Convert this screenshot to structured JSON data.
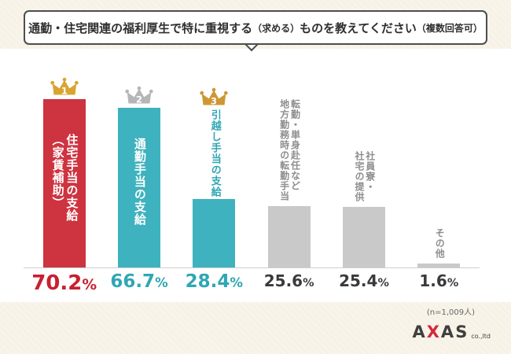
{
  "title": {
    "seg_main1": "通勤・住宅関連の福利厚生で特に重視する",
    "seg_small1": "（求める）",
    "seg_main2": "ものを教えてください",
    "seg_small2": "（複数回答可）"
  },
  "chart_data": {
    "type": "bar",
    "title": "通勤・住宅関連の福利厚生で特に重視する（求める）ものを教えてください（複数回答可）",
    "categories": [
      "住宅手当の支給（家賃補助）",
      "通勤手当の支給",
      "引越し手当の支給",
      "転勤・単身赴任など地方勤務時の転勤手当",
      "社員寮・社宅の提供",
      "その他"
    ],
    "values": [
      70.2,
      66.7,
      28.4,
      25.6,
      25.4,
      1.6
    ],
    "unit": "%",
    "ylim": [
      0,
      100
    ],
    "grid": false,
    "legend": "none",
    "sample_note": "(n=1,009人)",
    "ranks": [
      1,
      2,
      3,
      null,
      null,
      null
    ]
  },
  "columns": [
    {
      "rank": "1",
      "label_lines": [
        "住宅手当の支給",
        "（家賃補助）"
      ],
      "value": "70.2",
      "unit": "%"
    },
    {
      "rank": "2",
      "label_lines": [
        "通勤手当の支給"
      ],
      "value": "66.7",
      "unit": "%"
    },
    {
      "rank": "3",
      "label_lines": [
        "引越し手当の支給"
      ],
      "value": "28.4",
      "unit": "%"
    },
    {
      "label_lines": [
        "転勤・単身赴任など",
        "地方勤務時の転勤手当"
      ],
      "value": "25.6",
      "unit": "%"
    },
    {
      "label_lines": [
        "社員寮・",
        "社宅の提供"
      ],
      "value": "25.4",
      "unit": "%"
    },
    {
      "label_lines": [
        "その他"
      ],
      "value": "1.6",
      "unit": "%"
    }
  ],
  "footer": {
    "sample_note": "(n=1,009人)",
    "logo_letter1": "A",
    "logo_letter2": "X",
    "logo_letter3": "A",
    "logo_letter4": "S",
    "logo_sub": "co.,ltd"
  },
  "colors": {
    "background": "#f8f4e9",
    "panel": "#ffffff",
    "bar_red": "#ce3340",
    "bar_teal": "#3eb2be",
    "bar_gray": "#c9c9c9",
    "accent_red": "#c9202f",
    "accent_teal": "#2fa7b4",
    "crown_gold": "#d9a431",
    "crown_silver": "#b5b6b8",
    "crown_bronze": "#cd9733",
    "logo_red": "#d6283c"
  }
}
